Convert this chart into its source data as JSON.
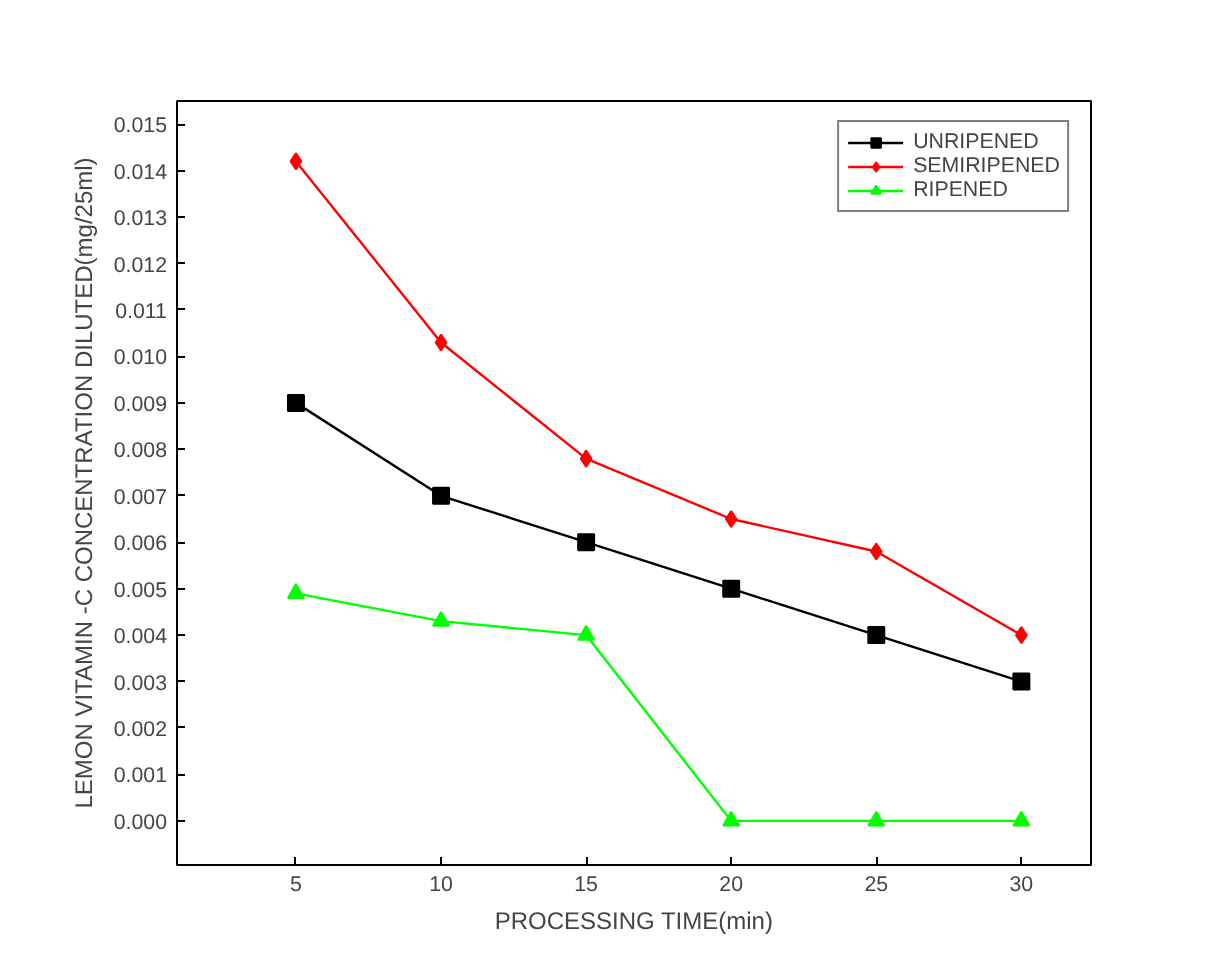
{
  "chart_data": {
    "type": "line",
    "xlabel": "PROCESSING TIME(min)",
    "ylabel": "LEMON VITAMIN -C CONCENTRATION DILUTED(mg/25ml)",
    "x": [
      5,
      10,
      15,
      20,
      25,
      30
    ],
    "series": [
      {
        "name": "UNRIPENED",
        "color": "#000000",
        "marker": "square",
        "values": [
          0.009,
          0.007,
          0.006,
          0.005,
          0.004,
          0.003
        ]
      },
      {
        "name": "SEMIRIPENED",
        "color": "#ff0000",
        "marker": "diamond",
        "values": [
          0.0142,
          0.0103,
          0.0078,
          0.0065,
          0.0058,
          0.004
        ]
      },
      {
        "name": "RIPENED",
        "color": "#00ff00",
        "marker": "triangle",
        "values": [
          0.0049,
          0.0043,
          0.004,
          0,
          0,
          0
        ]
      }
    ],
    "xlim": [
      0.9,
      32.4
    ],
    "xticks": [
      5,
      10,
      15,
      20,
      25,
      30
    ],
    "ylim": [
      -0.00095,
      0.0155
    ],
    "yticks": [
      {
        "value": 0,
        "label": "0.000"
      },
      {
        "value": 0.001,
        "label": "0.001"
      },
      {
        "value": 0.002,
        "label": "0.002"
      },
      {
        "value": 0.003,
        "label": "0.003"
      },
      {
        "value": 0.004,
        "label": "0.004"
      },
      {
        "value": 0.005,
        "label": "0.005"
      },
      {
        "value": 0.006,
        "label": "0.006"
      },
      {
        "value": 0.007,
        "label": "0.007"
      },
      {
        "value": 0.008,
        "label": "0.008"
      },
      {
        "value": 0.009,
        "label": "0.009"
      },
      {
        "value": 0.01,
        "label": "0.010"
      },
      {
        "value": 0.011,
        "label": "0.011"
      },
      {
        "value": 0.012,
        "label": "0.012"
      },
      {
        "value": 0.013,
        "label": "0.013"
      },
      {
        "value": 0.014,
        "label": "0.014"
      },
      {
        "value": 0.015,
        "label": "0.015"
      }
    ],
    "grid": false,
    "legend": "top right",
    "line_style": "solid"
  }
}
